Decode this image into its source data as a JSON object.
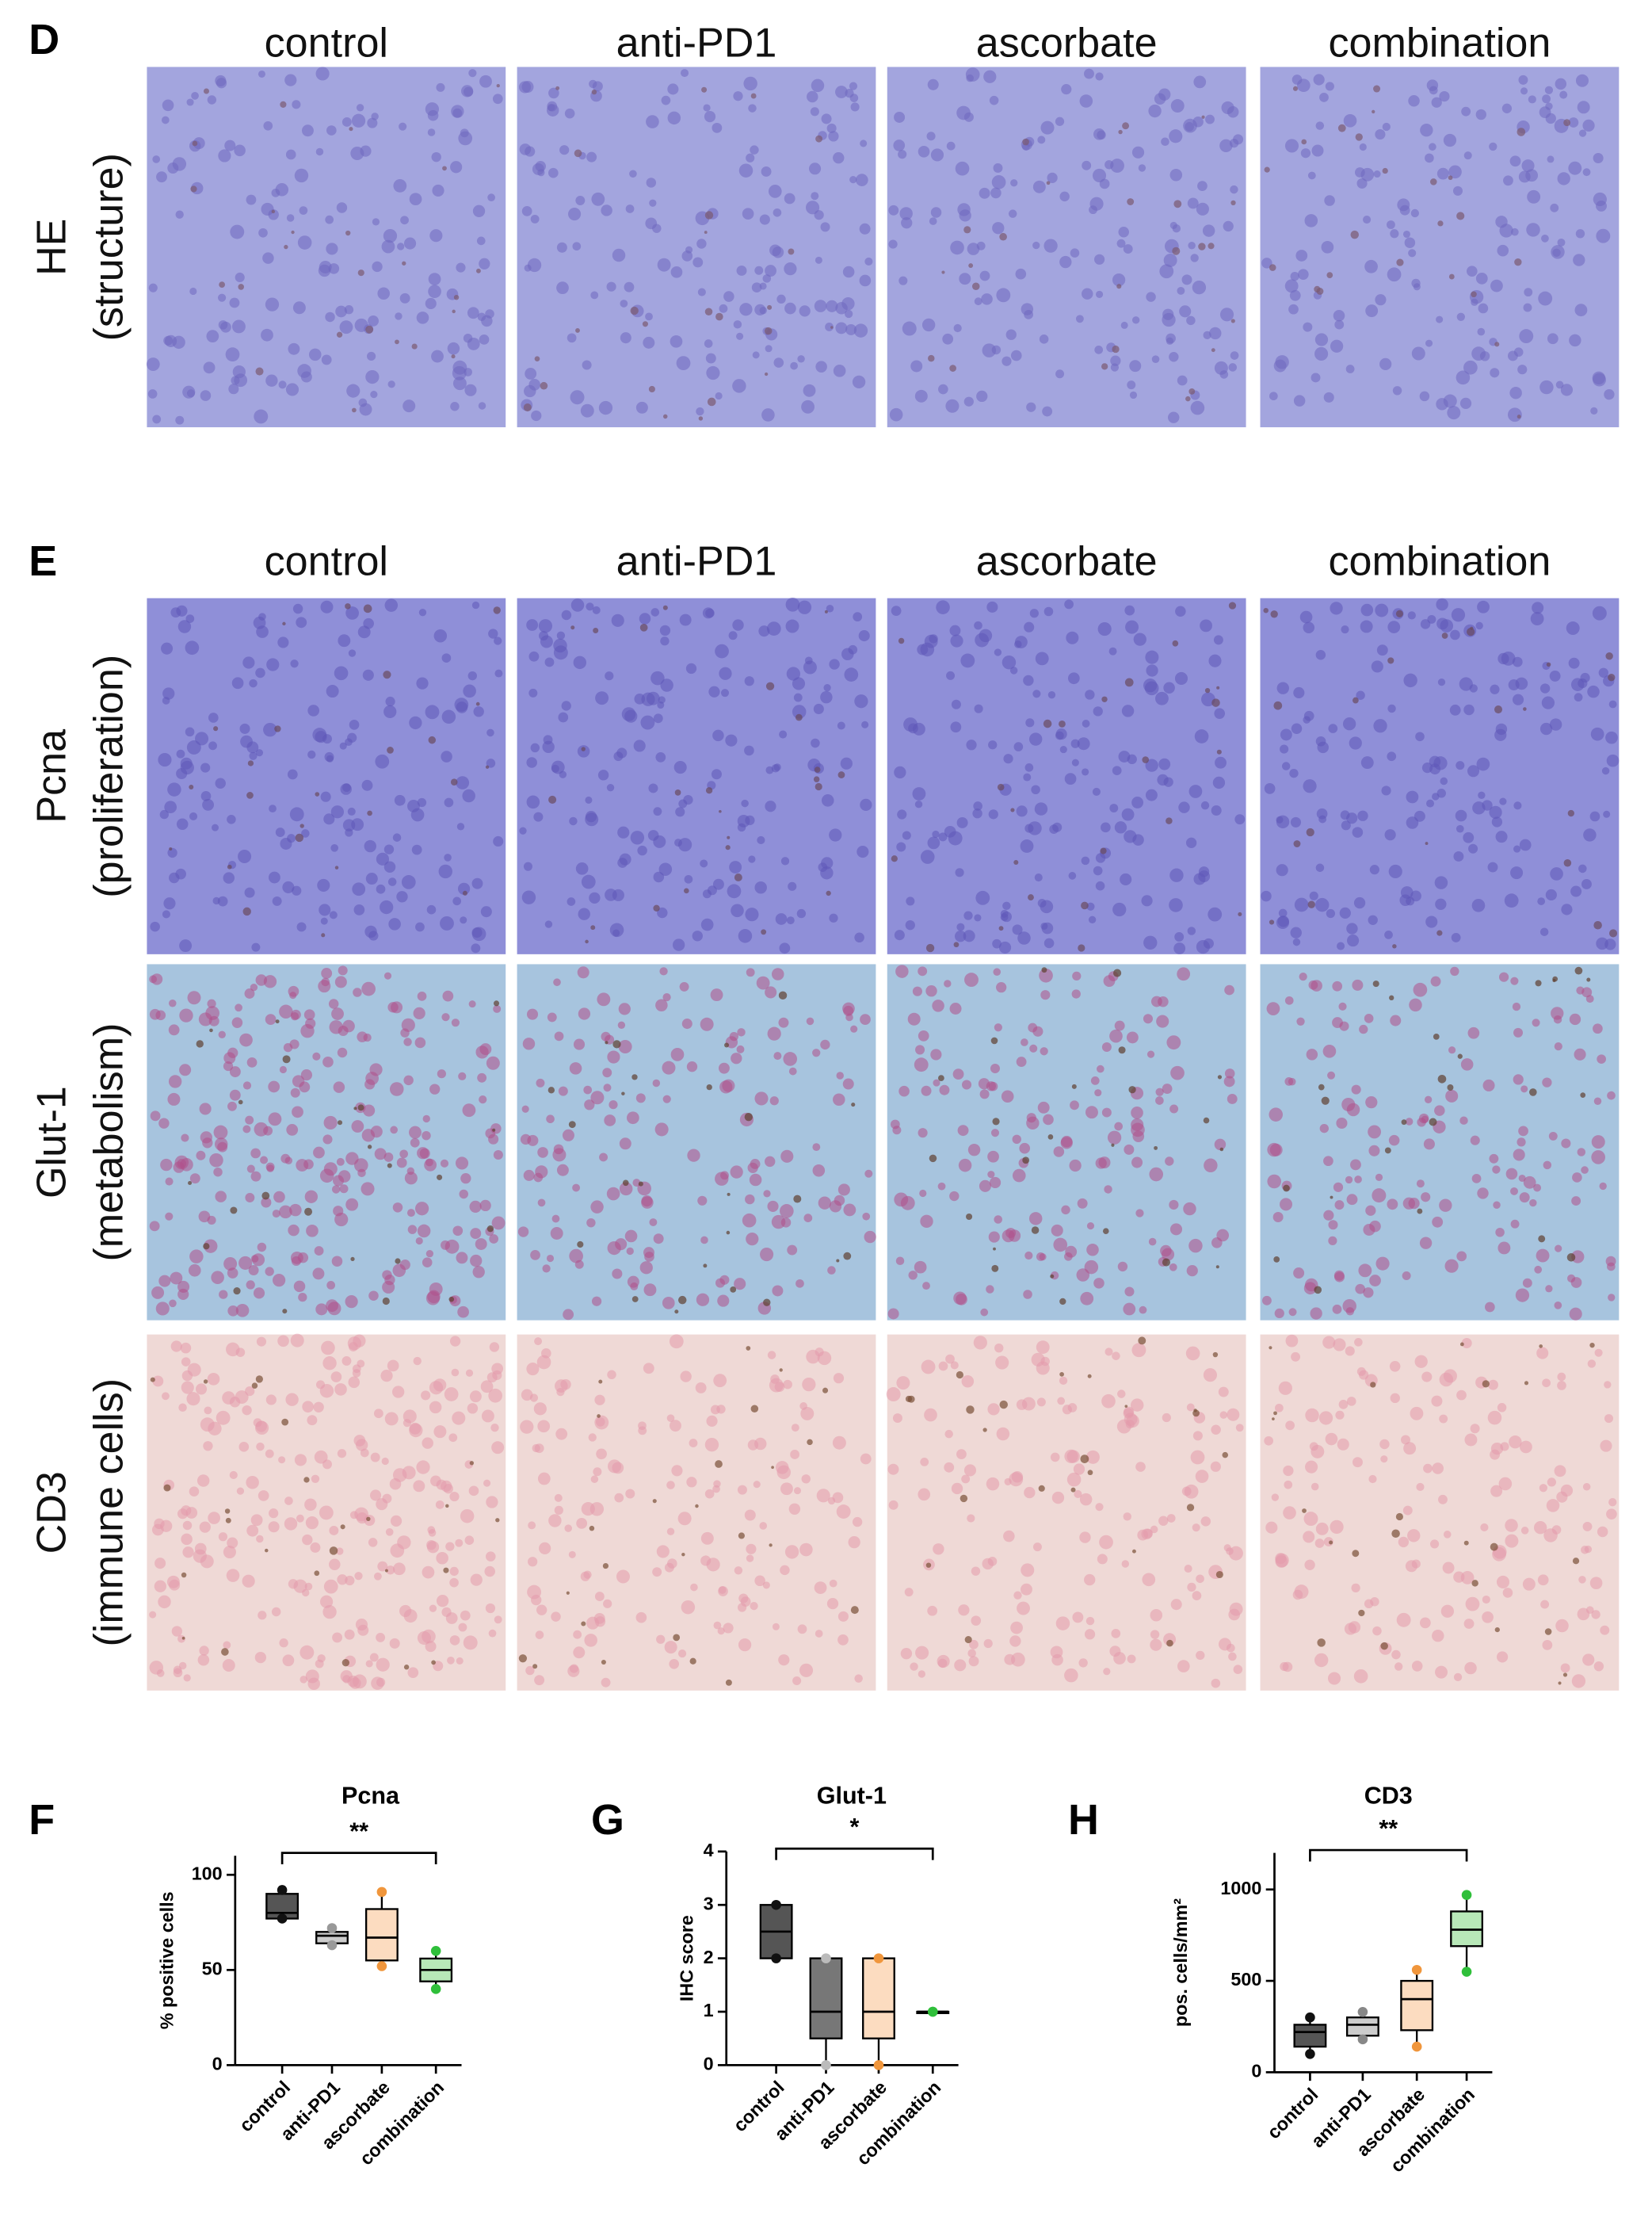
{
  "micrographs": [
    {
      "panel_label": "D",
      "columns": [
        "control",
        "anti-PD1",
        "ascorbate",
        "combination"
      ],
      "rows": [
        {
          "label": "HE",
          "sublabel": "(structure)"
        }
      ]
    },
    {
      "panel_label": "E",
      "columns": [
        "control",
        "anti-PD1",
        "ascorbate",
        "combination"
      ],
      "rows": [
        {
          "label": "Pcna",
          "sublabel": "(proliferation)"
        },
        {
          "label": "Glut-1",
          "sublabel": "(metabolism)"
        },
        {
          "label": "CD3",
          "sublabel": "(immune cells)"
        }
      ]
    }
  ],
  "chart_data": [
    {
      "type": "box",
      "panel_label": "F",
      "title": "Pcna",
      "annotation": "**",
      "ylabel": "% positive cells",
      "categories": [
        "control",
        "anti-PD1",
        "ascorbate",
        "combination"
      ],
      "colors": [
        "#555555",
        "#cccccc",
        "#fcdcc0",
        "#b8e8b8"
      ],
      "edge_colors": [
        "#111111",
        "#999999",
        "#f0963c",
        "#2fbf3a"
      ],
      "stats": {
        "min": [
          77,
          63,
          52,
          40
        ],
        "q1": [
          77,
          64,
          55,
          44
        ],
        "median": [
          80,
          68,
          67,
          50
        ],
        "q3": [
          90,
          70,
          82,
          56
        ],
        "max": [
          92,
          72,
          91,
          60
        ]
      },
      "ylim": [
        0,
        110
      ],
      "yticks": [
        0,
        50,
        100
      ]
    },
    {
      "type": "box",
      "panel_label": "G",
      "title": "Glut-1",
      "annotation": "*",
      "ylabel": "IHC score",
      "categories": [
        "control",
        "anti-PD1",
        "ascorbate",
        "combination"
      ],
      "colors": [
        "#555555",
        "#777777",
        "#fcdcc0",
        "#b8e8b8"
      ],
      "edge_colors": [
        "#111111",
        "#bbbbbb",
        "#f0963c",
        "#2fbf3a"
      ],
      "stats": {
        "min": [
          2,
          0,
          0,
          1
        ],
        "q1": [
          2,
          0.5,
          0.5,
          1
        ],
        "median": [
          2.5,
          1,
          1,
          1
        ],
        "q3": [
          3,
          2,
          2,
          1
        ],
        "max": [
          3,
          2,
          2,
          1
        ]
      },
      "ylim": [
        0,
        4
      ],
      "yticks": [
        0,
        1,
        2,
        3,
        4
      ]
    },
    {
      "type": "box",
      "panel_label": "H",
      "title": "CD3",
      "annotation": "**",
      "ylabel": "pos. cells/mm²",
      "categories": [
        "control",
        "anti-PD1",
        "ascorbate",
        "combination"
      ],
      "colors": [
        "#555555",
        "#cccccc",
        "#fcdcc0",
        "#b8e8b8"
      ],
      "edge_colors": [
        "#111111",
        "#888888",
        "#f0963c",
        "#2fbf3a"
      ],
      "stats": {
        "min": [
          100,
          180,
          140,
          550
        ],
        "q1": [
          140,
          200,
          230,
          690
        ],
        "median": [
          220,
          260,
          400,
          780
        ],
        "q3": [
          260,
          300,
          500,
          880
        ],
        "max": [
          300,
          330,
          560,
          970
        ]
      },
      "ylim": [
        0,
        1200
      ],
      "yticks": [
        0,
        500,
        1000
      ]
    }
  ]
}
